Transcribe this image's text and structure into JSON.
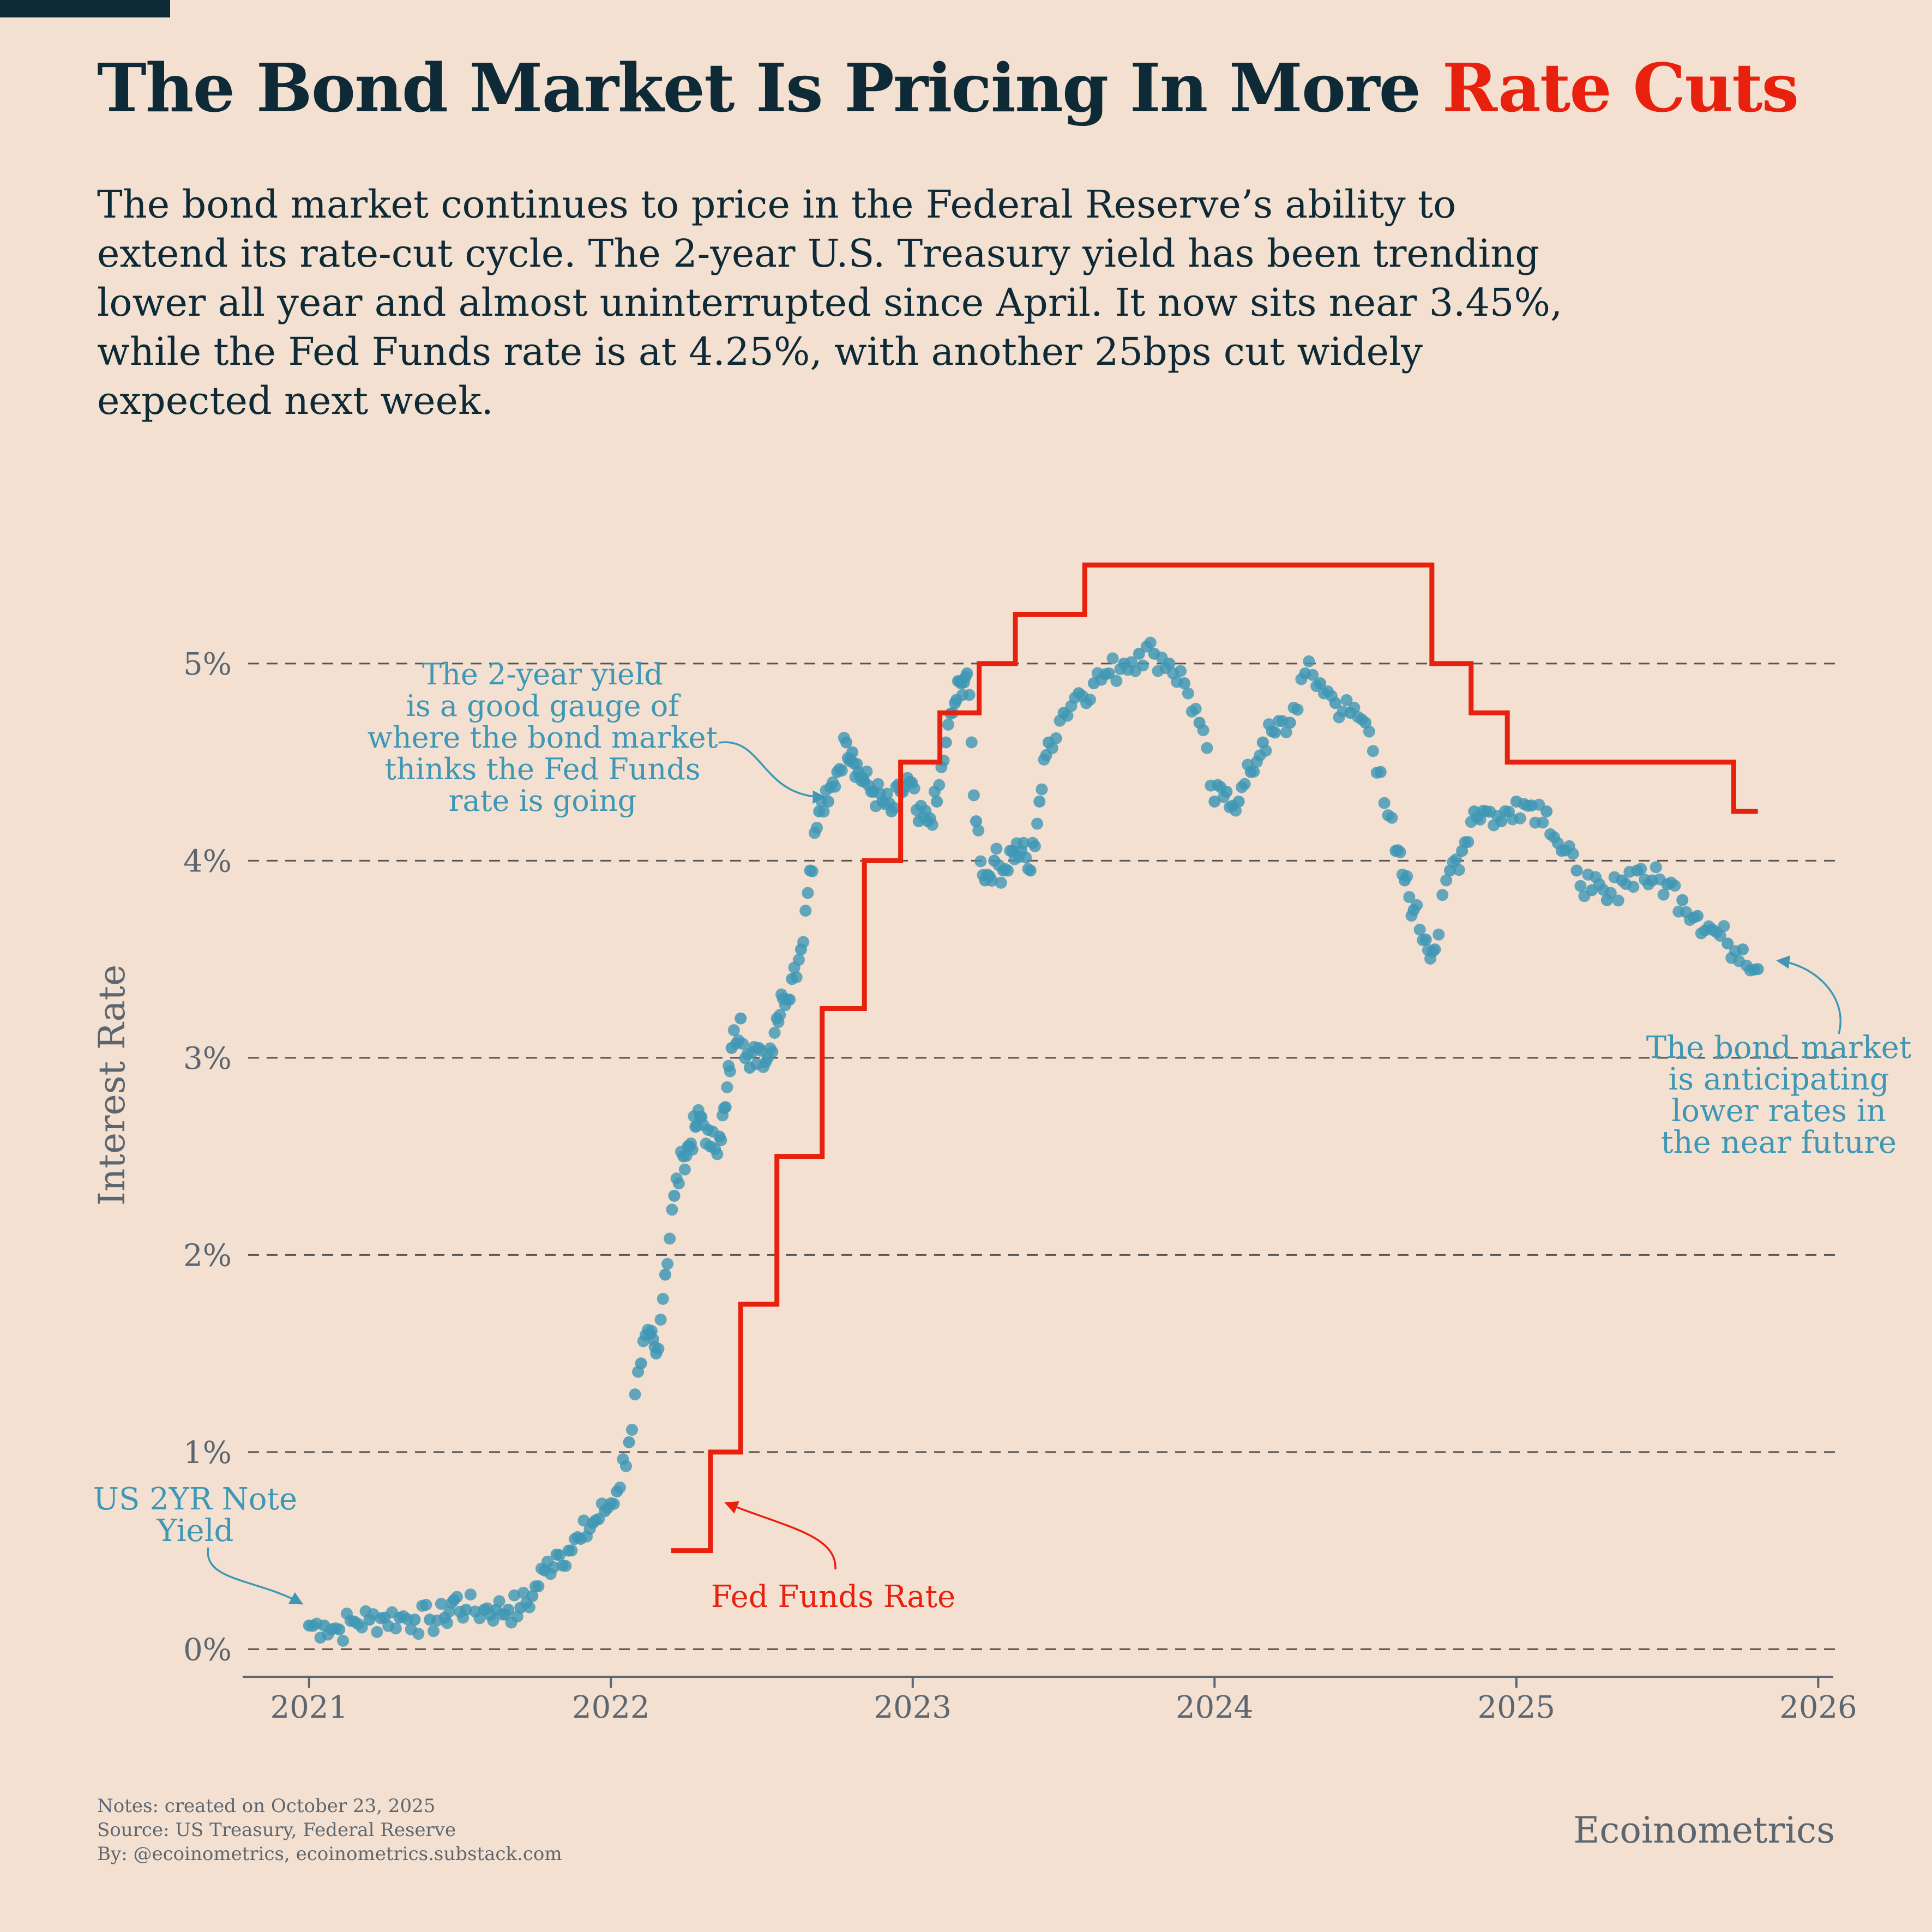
{
  "header": {
    "title_main": "The Bond Market Is Pricing In More ",
    "title_accent": "Rate Cuts",
    "subtitle": "The bond market continues to price in the Federal Reserve’s ability to extend its rate-cut cycle. The 2-year U.S. Treasury yield has been trending lower all year and almost uninterrupted since April. It now sits near 3.45%, while the Fed Funds rate is at 4.25%, with another 25bps cut widely expected next week."
  },
  "footer": {
    "note": "Notes: created on October 23, 2025",
    "source": "Source: US Treasury, Federal Reserve",
    "by": "By: @ecoinometrics, ecoinometrics.substack.com",
    "brand": "Ecoinometrics"
  },
  "colors": {
    "background": "#F3E0D0",
    "title": "#0E2A36",
    "accent": "#E8200E",
    "yield": "#3E97B5",
    "fedfunds": "#E8200E",
    "grid": "#555555",
    "axis_text": "#5B6670"
  },
  "chart_data": {
    "type": "scatter",
    "title": "The Bond Market Is Pricing In More Rate Cuts",
    "xlabel": "",
    "ylabel": "Interest Rate",
    "xlim": [
      2020.78,
      2026.05
    ],
    "ylim": [
      -0.14,
      5.6
    ],
    "x_ticks": [
      2021,
      2022,
      2023,
      2024,
      2025,
      2026
    ],
    "x_tick_labels": [
      "2021",
      "2022",
      "2023",
      "2024",
      "2025",
      "2026"
    ],
    "y_ticks": [
      0,
      1,
      2,
      3,
      4,
      5
    ],
    "y_tick_labels": [
      "0%",
      "1%",
      "2%",
      "3%",
      "4%",
      "5%"
    ],
    "grid": "horizontal dashed",
    "series": [
      {
        "name": "US 2YR Note Yield",
        "type": "scatter",
        "x": [
          2021.0,
          2021.05,
          2021.1,
          2021.15,
          2021.2,
          2021.25,
          2021.3,
          2021.35,
          2021.4,
          2021.45,
          2021.48,
          2021.52,
          2021.58,
          2021.62,
          2021.66,
          2021.7,
          2021.74,
          2021.78,
          2021.82,
          2021.86,
          2021.9,
          2021.94,
          2021.98,
          2022.02,
          2022.06,
          2022.1,
          2022.13,
          2022.15,
          2022.18,
          2022.21,
          2022.24,
          2022.26,
          2022.28,
          2022.3,
          2022.33,
          2022.36,
          2022.38,
          2022.4,
          2022.43,
          2022.46,
          2022.49,
          2022.52,
          2022.55,
          2022.57,
          2022.6,
          2022.63,
          2022.66,
          2022.69,
          2022.72,
          2022.75,
          2022.78,
          2022.8,
          2022.82,
          2022.84,
          2022.87,
          2022.9,
          2022.93,
          2022.96,
          2022.99,
          2023.02,
          2023.05,
          2023.08,
          2023.11,
          2023.14,
          2023.16,
          2023.18,
          2023.21,
          2023.24,
          2023.27,
          2023.3,
          2023.33,
          2023.36,
          2023.39,
          2023.42,
          2023.45,
          2023.5,
          2023.55,
          2023.6,
          2023.65,
          2023.7,
          2023.75,
          2023.8,
          2023.85,
          2023.9,
          2023.95,
          2024.0,
          2024.04,
          2024.08,
          2024.12,
          2024.16,
          2024.2,
          2024.25,
          2024.3,
          2024.35,
          2024.4,
          2024.45,
          2024.5,
          2024.55,
          2024.6,
          2024.63,
          2024.66,
          2024.7,
          2024.73,
          2024.78,
          2024.82,
          2024.86,
          2024.9,
          2024.95,
          2025.0,
          2025.05,
          2025.1,
          2025.15,
          2025.2,
          2025.25,
          2025.3,
          2025.35,
          2025.4,
          2025.45,
          2025.5,
          2025.55,
          2025.6,
          2025.65,
          2025.7,
          2025.75,
          2025.8
        ],
        "y": [
          0.12,
          0.12,
          0.1,
          0.14,
          0.15,
          0.16,
          0.16,
          0.15,
          0.15,
          0.16,
          0.25,
          0.2,
          0.2,
          0.2,
          0.2,
          0.21,
          0.27,
          0.4,
          0.48,
          0.5,
          0.56,
          0.64,
          0.7,
          0.8,
          1.05,
          1.45,
          1.6,
          1.5,
          1.9,
          2.3,
          2.5,
          2.55,
          2.65,
          2.7,
          2.55,
          2.6,
          2.75,
          3.05,
          3.2,
          2.95,
          3.05,
          3.0,
          3.2,
          3.3,
          3.4,
          3.55,
          3.95,
          4.25,
          4.3,
          4.45,
          4.6,
          4.55,
          4.45,
          4.4,
          4.35,
          4.3,
          4.25,
          4.35,
          4.4,
          4.2,
          4.2,
          4.3,
          4.6,
          4.8,
          4.9,
          4.95,
          4.2,
          3.9,
          4.0,
          3.95,
          4.05,
          4.05,
          3.95,
          4.3,
          4.6,
          4.75,
          4.85,
          4.9,
          4.95,
          5.0,
          5.05,
          5.05,
          5.0,
          4.9,
          4.7,
          4.3,
          4.35,
          4.3,
          4.45,
          4.6,
          4.65,
          4.7,
          4.95,
          4.9,
          4.8,
          4.75,
          4.7,
          4.45,
          4.05,
          3.9,
          3.75,
          3.6,
          3.55,
          3.95,
          4.05,
          4.25,
          4.25,
          4.2,
          4.3,
          4.28,
          4.25,
          4.05,
          3.95,
          3.85,
          3.8,
          3.9,
          3.95,
          3.9,
          3.88,
          3.8,
          3.72,
          3.65,
          3.58,
          3.55,
          3.45
        ]
      },
      {
        "name": "Fed Funds Rate",
        "type": "step",
        "x": [
          2022.2,
          2022.33,
          2022.43,
          2022.55,
          2022.7,
          2022.84,
          2022.96,
          2023.09,
          2023.22,
          2023.34,
          2023.57,
          2024.72,
          2024.85,
          2024.97,
          2025.72,
          2025.8
        ],
        "y": [
          0.5,
          1.0,
          1.75,
          2.5,
          3.25,
          4.0,
          4.5,
          4.75,
          5.0,
          5.25,
          5.5,
          5.0,
          4.75,
          4.5,
          4.25,
          4.25
        ]
      }
    ],
    "annotations": [
      {
        "text": "US 2YR Note Yield",
        "lines": [
          "US 2YR Note",
          "Yield"
        ],
        "color": "#3E97B5"
      },
      {
        "text": "The 2-year yield is a good gauge of where the bond market thinks the Fed Funds rate is going",
        "lines": [
          "The 2-year yield",
          "is a good gauge of",
          "where the bond market",
          "thinks the Fed Funds",
          "rate is going"
        ],
        "color": "#3E97B5"
      },
      {
        "text": "Fed  Funds Rate",
        "lines": [
          "Fed  Funds Rate"
        ],
        "color": "#E8200E"
      },
      {
        "text": "The bond market is anticipating lower rates in the near future",
        "lines": [
          "The bond market",
          "is anticipating",
          "lower rates in",
          "the near future"
        ],
        "color": "#3E97B5"
      }
    ]
  }
}
